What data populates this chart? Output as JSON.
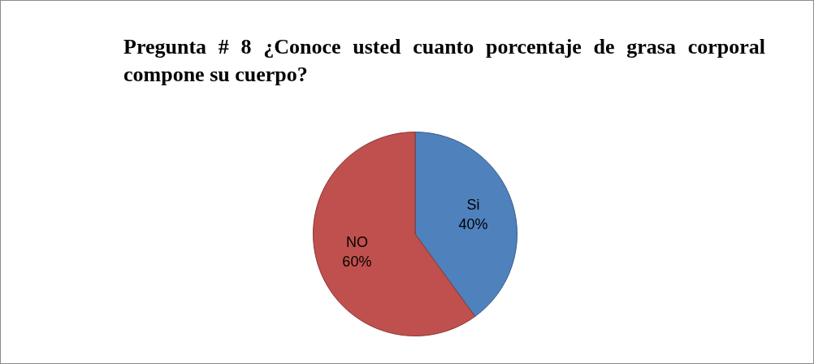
{
  "chart_data": {
    "type": "pie",
    "title": "Pregunta # 8 ¿Conoce usted cuanto porcentaje de grasa corporal compone su cuerpo?",
    "categories": [
      "Si",
      "NO"
    ],
    "values": [
      40,
      60
    ],
    "value_labels": [
      "40%",
      "60%"
    ],
    "colors": [
      "#4f81bd",
      "#c0504d"
    ],
    "legend": false
  }
}
